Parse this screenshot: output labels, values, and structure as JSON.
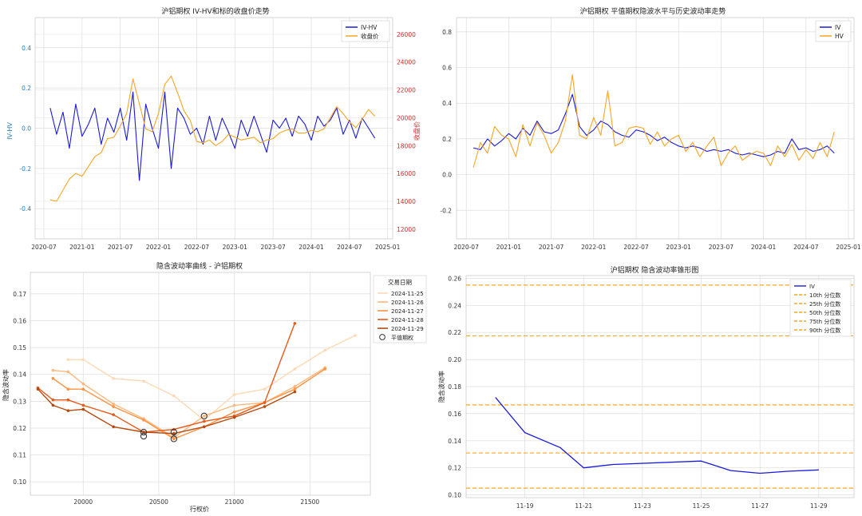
{
  "chart_data": [
    {
      "type": "line",
      "title": "沪铝期权 IV-HV和标的收盘价走势",
      "ylabel": "IV-HV",
      "y2label": "收盘价",
      "ylim": [
        -0.55,
        0.55
      ],
      "y2lim": [
        11300,
        27200
      ],
      "xlim": [
        "2020-05-20",
        "2025-01-25"
      ],
      "xticks": [
        "2020-07",
        "2021-01",
        "2021-07",
        "2022-01",
        "2022-07",
        "2023-01",
        "2023-07",
        "2024-01",
        "2024-07",
        "2025-01"
      ],
      "yticks": [
        "-0.4",
        "-0.2",
        "0.0",
        "0.2",
        "0.4"
      ],
      "y2ticks": [
        "12000",
        "14000",
        "16000",
        "18000",
        "20000",
        "22000",
        "24000",
        "26000"
      ],
      "grid": true,
      "legend": "top-right",
      "dates": [
        "2020-08",
        "2020-09",
        "2020-10",
        "2020-11",
        "2020-12",
        "2021-01",
        "2021-02",
        "2021-03",
        "2021-04",
        "2021-05",
        "2021-06",
        "2021-07",
        "2021-08",
        "2021-09",
        "2021-10",
        "2021-11",
        "2021-12",
        "2022-01",
        "2022-02",
        "2022-03",
        "2022-04",
        "2022-05",
        "2022-06",
        "2022-07",
        "2022-08",
        "2022-09",
        "2022-10",
        "2022-11",
        "2022-12",
        "2023-01",
        "2023-02",
        "2023-03",
        "2023-04",
        "2023-05",
        "2023-06",
        "2023-07",
        "2023-08",
        "2023-09",
        "2023-10",
        "2023-11",
        "2023-12",
        "2024-01",
        "2024-02",
        "2024-03",
        "2024-04",
        "2024-05",
        "2024-06",
        "2024-07",
        "2024-08",
        "2024-09",
        "2024-10",
        "2024-11"
      ],
      "series": [
        {
          "name": "IV-HV",
          "axis": "left",
          "color": "#1a1adc",
          "values": [
            0.1,
            -0.03,
            0.08,
            -0.1,
            0.12,
            -0.04,
            0.02,
            0.1,
            -0.08,
            0.05,
            -0.02,
            0.1,
            -0.06,
            0.18,
            -0.26,
            0.12,
            0.0,
            -0.1,
            0.18,
            -0.2,
            0.1,
            0.05,
            -0.03,
            0.0,
            -0.08,
            0.06,
            -0.06,
            0.05,
            -0.02,
            -0.1,
            0.04,
            -0.04,
            0.06,
            -0.03,
            -0.12,
            0.04,
            0.0,
            0.05,
            -0.04,
            0.06,
            0.02,
            -0.06,
            0.06,
            0.01,
            0.04,
            0.1,
            -0.03,
            0.04,
            -0.05,
            0.05,
            0.0,
            -0.05
          ]
        },
        {
          "name": "收盘价",
          "axis": "right",
          "color": "#f5a623",
          "values": [
            14100,
            14000,
            14800,
            15600,
            16000,
            15800,
            16500,
            17200,
            17500,
            18500,
            18600,
            19400,
            20300,
            22800,
            21000,
            19200,
            19000,
            20300,
            22400,
            23000,
            21800,
            20500,
            19800,
            18300,
            18200,
            18400,
            18000,
            18300,
            18800,
            18600,
            18400,
            18500,
            18600,
            18200,
            18400,
            18500,
            18900,
            19100,
            19200,
            18900,
            18900,
            19100,
            19000,
            19200,
            20000,
            20800,
            20300,
            19700,
            19300,
            19900,
            20600,
            20100
          ]
        }
      ]
    },
    {
      "type": "line",
      "title": "沪铝期权 平值期权隐波水平与历史波动率走势",
      "ylim": [
        -0.36,
        0.88
      ],
      "xlim": [
        "2020-05-20",
        "2025-01-25"
      ],
      "xticks": [
        "2020-07",
        "2021-01",
        "2021-07",
        "2022-01",
        "2022-07",
        "2023-01",
        "2023-07",
        "2024-01",
        "2024-07",
        "2025-01"
      ],
      "yticks": [
        "-0.2",
        "0.0",
        "0.2",
        "0.4",
        "0.6",
        "0.8"
      ],
      "grid": true,
      "legend": "top-right",
      "dates": [
        "2020-08",
        "2020-09",
        "2020-10",
        "2020-11",
        "2020-12",
        "2021-01",
        "2021-02",
        "2021-03",
        "2021-04",
        "2021-05",
        "2021-06",
        "2021-07",
        "2021-08",
        "2021-09",
        "2021-10",
        "2021-11",
        "2021-12",
        "2022-01",
        "2022-02",
        "2022-03",
        "2022-04",
        "2022-05",
        "2022-06",
        "2022-07",
        "2022-08",
        "2022-09",
        "2022-10",
        "2022-11",
        "2022-12",
        "2023-01",
        "2023-02",
        "2023-03",
        "2023-04",
        "2023-05",
        "2023-06",
        "2023-07",
        "2023-08",
        "2023-09",
        "2023-10",
        "2023-11",
        "2023-12",
        "2024-01",
        "2024-02",
        "2024-03",
        "2024-04",
        "2024-05",
        "2024-06",
        "2024-07",
        "2024-08",
        "2024-09",
        "2024-10",
        "2024-11"
      ],
      "series": [
        {
          "name": "IV",
          "color": "#1a1adc",
          "values": [
            0.15,
            0.14,
            0.2,
            0.16,
            0.19,
            0.23,
            0.2,
            0.26,
            0.22,
            0.3,
            0.24,
            0.23,
            0.25,
            0.34,
            0.45,
            0.27,
            0.22,
            0.25,
            0.3,
            0.28,
            0.24,
            0.22,
            0.21,
            0.25,
            0.24,
            0.22,
            0.19,
            0.21,
            0.18,
            0.16,
            0.15,
            0.16,
            0.15,
            0.13,
            0.14,
            0.13,
            0.14,
            0.12,
            0.11,
            0.12,
            0.11,
            0.1,
            0.11,
            0.13,
            0.12,
            0.2,
            0.14,
            0.15,
            0.13,
            0.14,
            0.16,
            0.12
          ]
        },
        {
          "name": "HV",
          "color": "#f5a623",
          "values": [
            0.04,
            0.18,
            0.12,
            0.27,
            0.22,
            0.2,
            0.1,
            0.28,
            0.16,
            0.29,
            0.22,
            0.12,
            0.18,
            0.3,
            0.56,
            0.22,
            0.2,
            0.32,
            0.22,
            0.47,
            0.16,
            0.18,
            0.26,
            0.27,
            0.26,
            0.17,
            0.24,
            0.16,
            0.2,
            0.22,
            0.13,
            0.18,
            0.1,
            0.16,
            0.21,
            0.05,
            0.12,
            0.16,
            0.08,
            0.11,
            0.13,
            0.12,
            0.05,
            0.16,
            0.1,
            0.17,
            0.08,
            0.14,
            0.09,
            0.18,
            0.1,
            0.24
          ]
        }
      ]
    },
    {
      "type": "line",
      "title": "隐含波动率曲线 - 沪铝期权",
      "xlabel": "行权价",
      "ylabel": "隐含波动率",
      "xlim": [
        19650,
        21900
      ],
      "ylim": [
        0.095,
        0.178
      ],
      "xticks": [
        "20000",
        "20500",
        "21000",
        "21500"
      ],
      "yticks": [
        "0.10",
        "0.11",
        "0.12",
        "0.13",
        "0.14",
        "0.15",
        "0.16",
        "0.17"
      ],
      "grid": true,
      "legend": "outside-right",
      "legend_title": "交易日期",
      "atm_label": "平值期权",
      "series": [
        {
          "name": "2024-11-25",
          "color": "#fdd9b5",
          "x": [
            19900,
            20000,
            20200,
            20400,
            20600,
            20800,
            21000,
            21200,
            21400,
            21600,
            21800
          ],
          "values": [
            0.1455,
            0.1455,
            0.1385,
            0.1375,
            0.132,
            0.123,
            0.1325,
            0.1345,
            0.142,
            0.149,
            0.1545
          ]
        },
        {
          "name": "2024-11-26",
          "color": "#fdb97d",
          "x": [
            19800,
            19900,
            20000,
            20200,
            20400,
            20600,
            20800,
            21000,
            21200,
            21400,
            21600
          ],
          "values": [
            0.1415,
            0.141,
            0.1365,
            0.129,
            0.1235,
            0.1165,
            0.1245,
            0.1285,
            0.1295,
            0.1355,
            0.1425
          ]
        },
        {
          "name": "2024-11-27",
          "color": "#fd9243",
          "x": [
            19800,
            19900,
            20000,
            20200,
            20400,
            20600,
            20800,
            21000,
            21200,
            21400,
            21600
          ],
          "values": [
            0.1385,
            0.1345,
            0.1345,
            0.128,
            0.123,
            0.116,
            0.1205,
            0.126,
            0.1295,
            0.1345,
            0.142
          ]
        },
        {
          "name": "2024-11-28",
          "color": "#e65a1a",
          "x": [
            19700,
            19800,
            19900,
            20000,
            20200,
            20400,
            20600,
            20800,
            21000,
            21200,
            21400
          ],
          "values": [
            0.135,
            0.1305,
            0.1305,
            0.1285,
            0.125,
            0.1185,
            0.1195,
            0.1225,
            0.1245,
            0.1295,
            0.159
          ]
        },
        {
          "name": "2024-11-29",
          "color": "#b6490f",
          "x": [
            19700,
            19800,
            19900,
            20000,
            20200,
            20400,
            20600,
            20800,
            21000,
            21200,
            21400
          ],
          "values": [
            0.1345,
            0.1285,
            0.1265,
            0.127,
            0.1205,
            0.1185,
            0.118,
            0.1205,
            0.124,
            0.128,
            0.1335
          ]
        }
      ],
      "atm_points": [
        {
          "x": 20400,
          "y": 0.1185
        },
        {
          "x": 20400,
          "y": 0.117
        },
        {
          "x": 20600,
          "y": 0.116
        },
        {
          "x": 20600,
          "y": 0.1185
        },
        {
          "x": 20800,
          "y": 0.1245
        }
      ]
    },
    {
      "type": "line",
      "title": "沪铝期权 隐含波动率锥形图",
      "ylabel": "隐含波动率",
      "xlim": [
        "11-18",
        "11-30"
      ],
      "ylim": [
        0.098,
        0.262
      ],
      "xticks": [
        "11-19",
        "11-21",
        "11-23",
        "11-25",
        "11-27",
        "11-29"
      ],
      "yticks": [
        "0.10",
        "0.12",
        "0.14",
        "0.16",
        "0.18",
        "0.20",
        "0.22",
        "0.24",
        "0.26"
      ],
      "grid": true,
      "legend": "top-right",
      "series": [
        {
          "name": "IV",
          "color": "#1a1adc",
          "x": [
            "11-18",
            "11-19",
            "11-20",
            "11-21",
            "11-22",
            "11-25",
            "11-26",
            "11-27",
            "11-28",
            "11-29"
          ],
          "day_index": [
            0.5,
            1,
            1.6,
            2,
            2.5,
            4,
            4.5,
            5,
            5.5,
            6
          ],
          "values": [
            0.172,
            0.146,
            0.135,
            0.12,
            0.1225,
            0.125,
            0.118,
            0.116,
            0.1175,
            0.1185
          ]
        }
      ],
      "percentiles": [
        {
          "name": "10th 分位数",
          "value": 0.105
        },
        {
          "name": "25th 分位数",
          "value": 0.131
        },
        {
          "name": "50th 分位数",
          "value": 0.1665
        },
        {
          "name": "75th 分位数",
          "value": 0.2175
        },
        {
          "name": "90th 分位数",
          "value": 0.255
        }
      ],
      "percentile_color": "#f5a623"
    }
  ]
}
